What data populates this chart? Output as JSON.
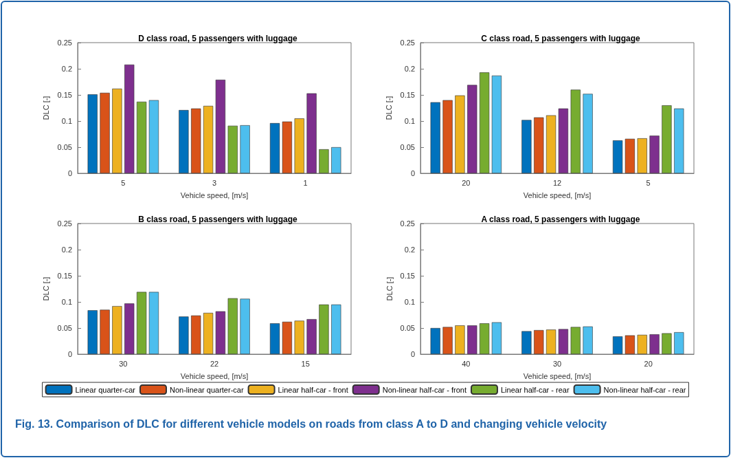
{
  "chart_data": [
    {
      "type": "bar",
      "title": "D class road, 5 passengers with luggage",
      "xlabel": "Vehicle speed, [m/s]",
      "ylabel": "DLC [-]",
      "categories": [
        "5",
        "3",
        "1"
      ],
      "ylim": [
        0,
        0.25
      ],
      "yticks": [
        0,
        0.05,
        0.1,
        0.15,
        0.2,
        0.25
      ],
      "grid": false,
      "legend": false,
      "series": [
        {
          "color": "#0072bd",
          "values": [
            0.151,
            0.121,
            0.096
          ]
        },
        {
          "color": "#d95319",
          "values": [
            0.154,
            0.124,
            0.099
          ]
        },
        {
          "color": "#edb120",
          "values": [
            0.162,
            0.129,
            0.105
          ]
        },
        {
          "color": "#7e2f8e",
          "values": [
            0.208,
            0.179,
            0.153
          ]
        },
        {
          "color": "#77ac30",
          "values": [
            0.137,
            0.091,
            0.046
          ]
        },
        {
          "color": "#4dbeee",
          "values": [
            0.14,
            0.092,
            0.05
          ]
        }
      ]
    },
    {
      "type": "bar",
      "title": "C class road, 5 passengers with luggage",
      "xlabel": "Vehicle speed, [m/s]",
      "ylabel": "DLC [-]",
      "categories": [
        "20",
        "12",
        "5"
      ],
      "ylim": [
        0,
        0.25
      ],
      "yticks": [
        0,
        0.05,
        0.1,
        0.15,
        0.2,
        0.25
      ],
      "grid": false,
      "legend": false,
      "series": [
        {
          "color": "#0072bd",
          "values": [
            0.136,
            0.102,
            0.063
          ]
        },
        {
          "color": "#d95319",
          "values": [
            0.14,
            0.107,
            0.066
          ]
        },
        {
          "color": "#edb120",
          "values": [
            0.149,
            0.111,
            0.067
          ]
        },
        {
          "color": "#7e2f8e",
          "values": [
            0.169,
            0.124,
            0.072
          ]
        },
        {
          "color": "#77ac30",
          "values": [
            0.193,
            0.16,
            0.13
          ]
        },
        {
          "color": "#4dbeee",
          "values": [
            0.187,
            0.152,
            0.124
          ]
        }
      ]
    },
    {
      "type": "bar",
      "title": "B class road, 5 passengers with luggage",
      "xlabel": "Vehicle speed, [m/s]",
      "ylabel": "DLC [-]",
      "categories": [
        "30",
        "22",
        "15"
      ],
      "ylim": [
        0,
        0.25
      ],
      "yticks": [
        0,
        0.05,
        0.1,
        0.15,
        0.2,
        0.25
      ],
      "grid": false,
      "legend": false,
      "series": [
        {
          "color": "#0072bd",
          "values": [
            0.084,
            0.072,
            0.059
          ]
        },
        {
          "color": "#d95319",
          "values": [
            0.085,
            0.074,
            0.062
          ]
        },
        {
          "color": "#edb120",
          "values": [
            0.092,
            0.079,
            0.064
          ]
        },
        {
          "color": "#7e2f8e",
          "values": [
            0.097,
            0.082,
            0.067
          ]
        },
        {
          "color": "#77ac30",
          "values": [
            0.119,
            0.107,
            0.095
          ]
        },
        {
          "color": "#4dbeee",
          "values": [
            0.119,
            0.106,
            0.095
          ]
        }
      ]
    },
    {
      "type": "bar",
      "title": "A class road, 5 passengers with luggage",
      "xlabel": "Vehicle speed, [m/s]",
      "ylabel": "DLC [-]",
      "categories": [
        "40",
        "30",
        "20"
      ],
      "ylim": [
        0,
        0.25
      ],
      "yticks": [
        0,
        0.05,
        0.1,
        0.15,
        0.2,
        0.25
      ],
      "grid": false,
      "legend": "bottom",
      "annotations": [
        "Fig. 13. Comparison of DLC for different vehicle models on roads from class A to D and changing vehicle velocity"
      ],
      "series": [
        {
          "name": "Linear quarter-car",
          "color": "#0072bd",
          "values": [
            0.05,
            0.044,
            0.034
          ]
        },
        {
          "name": "Non-linear quarter-car",
          "color": "#d95319",
          "values": [
            0.052,
            0.046,
            0.036
          ]
        },
        {
          "name": "Linear half-car - front",
          "color": "#edb120",
          "values": [
            0.055,
            0.047,
            0.037
          ]
        },
        {
          "name": "Non-linear half-car - front",
          "color": "#7e2f8e",
          "values": [
            0.055,
            0.048,
            0.038
          ]
        },
        {
          "name": "Linear half-car - rear",
          "color": "#77ac30",
          "values": [
            0.059,
            0.052,
            0.04
          ]
        },
        {
          "name": "Non-linear half-car - rear",
          "color": "#4dbeee",
          "values": [
            0.061,
            0.053,
            0.042
          ]
        }
      ]
    }
  ]
}
